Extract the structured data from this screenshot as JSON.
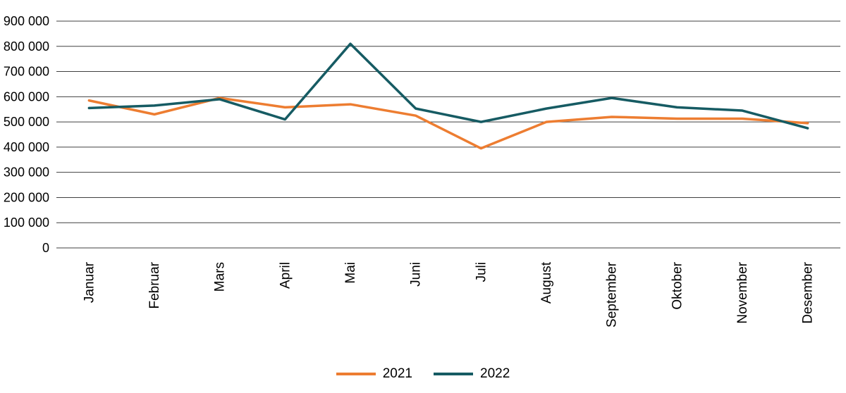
{
  "chart_data": {
    "type": "line",
    "title": "",
    "xlabel": "",
    "ylabel": "",
    "categories": [
      "Januar",
      "Februar",
      "Mars",
      "April",
      "Mai",
      "Juni",
      "Juli",
      "August",
      "September",
      "Oktober",
      "November",
      "Desember"
    ],
    "series": [
      {
        "name": "2021",
        "color": "#ED7D31",
        "values": [
          585000,
          530000,
          595000,
          558000,
          570000,
          525000,
          395000,
          500000,
          520000,
          513000,
          513000,
          495000
        ]
      },
      {
        "name": "2022",
        "color": "#165B63",
        "values": [
          555000,
          565000,
          590000,
          510000,
          810000,
          553000,
          500000,
          553000,
          595000,
          558000,
          545000,
          475000
        ]
      }
    ],
    "ylim": [
      0,
      900000
    ],
    "ytick_step": 100000,
    "ytick_labels": [
      "0",
      "100 000",
      "200 000",
      "300 000",
      "400 000",
      "500 000",
      "600 000",
      "700 000",
      "800 000",
      "900 000"
    ],
    "grid": true,
    "gridline_color": "#404040",
    "text_color": "#000000",
    "background_color": "#FFFFFF",
    "legend_position": "bottom-center",
    "x_tick_label_rotation": -90
  }
}
